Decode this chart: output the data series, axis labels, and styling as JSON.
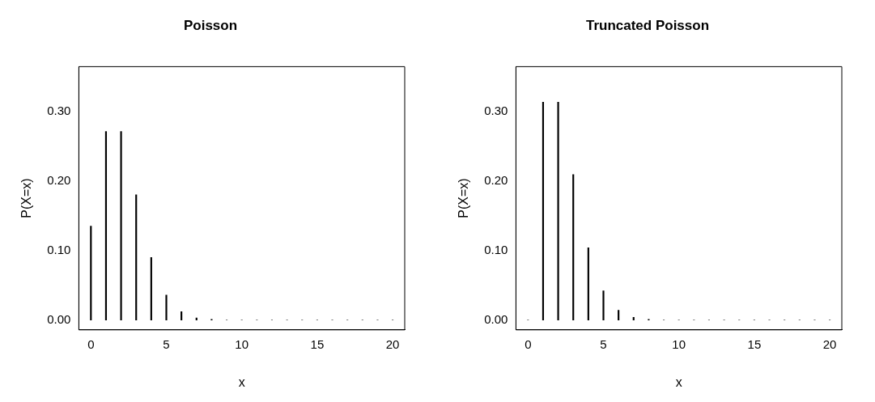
{
  "chart_data": [
    {
      "type": "bar",
      "title": "Poisson",
      "xlabel": "x",
      "ylabel": "P(X=x)",
      "color": "#000000",
      "x": [
        0,
        1,
        2,
        3,
        4,
        5,
        6,
        7,
        8,
        9,
        10,
        11,
        12,
        13,
        14,
        15,
        16,
        17,
        18,
        19,
        20
      ],
      "values": [
        0.135,
        0.271,
        0.271,
        0.18,
        0.09,
        0.036,
        0.012,
        0.003,
        0.001,
        0,
        0,
        0,
        0,
        0,
        0,
        0,
        0,
        0,
        0,
        0,
        0
      ],
      "xlim": [
        -0.8,
        20.8
      ],
      "xticks": [
        0,
        5,
        10,
        15,
        20
      ],
      "ylim": [
        -0.014,
        0.364
      ],
      "yticks": [
        {
          "value": 0,
          "label": "0.00"
        },
        {
          "value": 0.1,
          "label": "0.10"
        },
        {
          "value": 0.2,
          "label": "0.20"
        },
        {
          "value": 0.3,
          "label": "0.30"
        }
      ]
    },
    {
      "type": "bar",
      "title": "Truncated Poisson",
      "xlabel": "x",
      "ylabel": "P(X=x)",
      "color": "#000000",
      "x": [
        0,
        1,
        2,
        3,
        4,
        5,
        6,
        7,
        8,
        9,
        10,
        11,
        12,
        13,
        14,
        15,
        16,
        17,
        18,
        19,
        20
      ],
      "values": [
        0,
        0.313,
        0.313,
        0.209,
        0.104,
        0.042,
        0.014,
        0.004,
        0.001,
        0,
        0,
        0,
        0,
        0,
        0,
        0,
        0,
        0,
        0,
        0,
        0
      ],
      "xlim": [
        -0.8,
        20.8
      ],
      "xticks": [
        0,
        5,
        10,
        15,
        20
      ],
      "ylim": [
        -0.014,
        0.364
      ],
      "yticks": [
        {
          "value": 0,
          "label": "0.00"
        },
        {
          "value": 0.1,
          "label": "0.10"
        },
        {
          "value": 0.2,
          "label": "0.20"
        },
        {
          "value": 0.3,
          "label": "0.30"
        }
      ]
    }
  ]
}
